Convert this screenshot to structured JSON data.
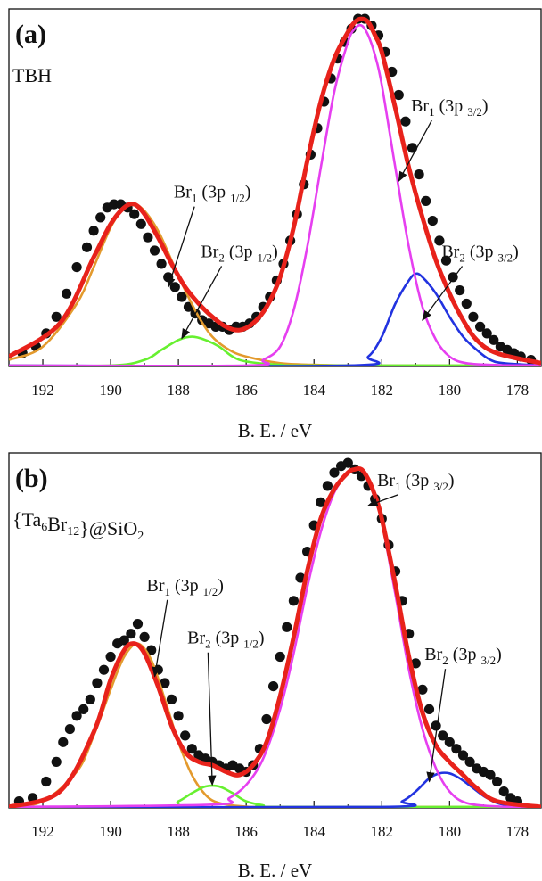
{
  "chart_data": [
    {
      "type": "line",
      "panel": "(a)",
      "sample": "TBH",
      "xlabel": "B. E. / eV",
      "xlim": [
        193,
        177.3
      ],
      "x_reversed": true,
      "ylim": [
        0,
        1.08
      ],
      "xticks": [
        192,
        190,
        188,
        186,
        184,
        182,
        180,
        178
      ],
      "series": [
        {
          "component": "fit",
          "color": "#e8221b",
          "x": [
            193,
            191.5,
            190.5,
            190,
            189.6,
            189.3,
            189,
            188.6,
            188.2,
            187.8,
            187.4,
            187,
            186.6,
            186.2,
            185.8,
            185.4,
            185,
            184.6,
            184.2,
            183.8,
            183.4,
            183,
            182.8,
            182.6,
            182.4,
            182.2,
            182,
            181.6,
            181.2,
            180.8,
            180.4,
            180,
            179.6,
            179.2,
            178.6,
            177.3
          ],
          "y": [
            0.03,
            0.13,
            0.33,
            0.43,
            0.48,
            0.49,
            0.46,
            0.39,
            0.31,
            0.24,
            0.19,
            0.15,
            0.12,
            0.11,
            0.13,
            0.18,
            0.27,
            0.42,
            0.62,
            0.8,
            0.93,
            1.01,
            1.04,
            1.05,
            1.04,
            1.0,
            0.95,
            0.78,
            0.6,
            0.45,
            0.32,
            0.22,
            0.14,
            0.08,
            0.04,
            0.01
          ]
        },
        {
          "component": "Br1 3p1/2",
          "color": "#e39a2d",
          "x": [
            193,
            192,
            191,
            190.5,
            190,
            189.6,
            189.3,
            189,
            188.6,
            188.2,
            187.8,
            187.4,
            187,
            186.5,
            186,
            185,
            184,
            183,
            182,
            180,
            177.3
          ],
          "y": [
            0.02,
            0.06,
            0.19,
            0.3,
            0.42,
            0.48,
            0.49,
            0.47,
            0.41,
            0.32,
            0.23,
            0.15,
            0.09,
            0.05,
            0.03,
            0.01,
            0.005,
            0.003,
            0.003,
            0.003,
            0.003
          ]
        },
        {
          "component": "Br2 3p1/2",
          "color": "#67f030",
          "x": [
            193,
            190,
            189,
            188.5,
            188,
            187.6,
            187.2,
            186.8,
            186.4,
            186,
            185,
            184,
            177.3
          ],
          "y": [
            0.003,
            0.003,
            0.02,
            0.05,
            0.08,
            0.09,
            0.08,
            0.06,
            0.03,
            0.015,
            0.005,
            0.003,
            0.003
          ]
        },
        {
          "component": "Br1 3p3/2",
          "color": "#e63ff0",
          "x": [
            193,
            186,
            185.5,
            185,
            184.6,
            184.2,
            183.8,
            183.4,
            183,
            182.8,
            182.6,
            182.4,
            182.2,
            182,
            181.6,
            181.2,
            180.8,
            180.4,
            180,
            179.5,
            178.5,
            177.3
          ],
          "y": [
            0.003,
            0.003,
            0.02,
            0.06,
            0.17,
            0.36,
            0.6,
            0.83,
            0.98,
            1.02,
            1.03,
            1.0,
            0.94,
            0.85,
            0.6,
            0.36,
            0.18,
            0.08,
            0.03,
            0.01,
            0.004,
            0.003
          ]
        },
        {
          "component": "Br2 3p3/2",
          "color": "#2233e0",
          "x": [
            193,
            183,
            182.4,
            182,
            181.6,
            181.2,
            181,
            180.8,
            180.4,
            180,
            179.6,
            179.2,
            178.8,
            178.4,
            177.3
          ],
          "y": [
            0.003,
            0.003,
            0.03,
            0.09,
            0.19,
            0.26,
            0.28,
            0.27,
            0.22,
            0.15,
            0.09,
            0.05,
            0.02,
            0.01,
            0.003
          ]
        }
      ],
      "points": {
        "x": [
          192.6,
          192.2,
          191.9,
          191.6,
          191.3,
          191.0,
          190.7,
          190.5,
          190.3,
          190.1,
          189.9,
          189.7,
          189.5,
          189.3,
          189.1,
          188.9,
          188.7,
          188.5,
          188.3,
          188.1,
          187.9,
          187.7,
          187.5,
          187.3,
          187.1,
          186.9,
          186.7,
          186.5,
          186.3,
          186.1,
          185.9,
          185.7,
          185.5,
          185.3,
          185.1,
          184.9,
          184.7,
          184.5,
          184.3,
          184.1,
          183.9,
          183.7,
          183.5,
          183.3,
          183.1,
          182.9,
          182.7,
          182.5,
          182.3,
          182.1,
          181.9,
          181.7,
          181.5,
          181.3,
          181.1,
          180.9,
          180.7,
          180.5,
          180.3,
          180.1,
          179.9,
          179.7,
          179.5,
          179.3,
          179.1,
          178.9,
          178.7,
          178.5,
          178.3,
          178.1,
          177.9,
          177.6
        ],
        "y": [
          0.04,
          0.06,
          0.1,
          0.15,
          0.22,
          0.3,
          0.36,
          0.41,
          0.45,
          0.48,
          0.49,
          0.49,
          0.48,
          0.46,
          0.43,
          0.39,
          0.35,
          0.31,
          0.27,
          0.24,
          0.21,
          0.18,
          0.16,
          0.14,
          0.13,
          0.12,
          0.12,
          0.11,
          0.12,
          0.12,
          0.13,
          0.15,
          0.18,
          0.21,
          0.26,
          0.31,
          0.38,
          0.46,
          0.55,
          0.64,
          0.72,
          0.8,
          0.87,
          0.93,
          0.98,
          1.02,
          1.05,
          1.05,
          1.03,
          1.0,
          0.95,
          0.89,
          0.82,
          0.74,
          0.66,
          0.58,
          0.5,
          0.44,
          0.38,
          0.32,
          0.27,
          0.23,
          0.19,
          0.15,
          0.12,
          0.1,
          0.08,
          0.06,
          0.05,
          0.04,
          0.03,
          0.02
        ]
      },
      "annotations": [
        {
          "base": "Br",
          "sub1": "1",
          "mid": " (3p ",
          "sub2": "1/2",
          "end": ")",
          "x": 187.0,
          "y": 0.51,
          "arrow_to": [
            188.3,
            0.24
          ]
        },
        {
          "base": "Br",
          "sub1": "2",
          "mid": " (3p ",
          "sub2": "1/2",
          "end": ")",
          "x": 186.2,
          "y": 0.33,
          "arrow_to": [
            187.9,
            0.085
          ]
        },
        {
          "base": "Br",
          "sub1": "1",
          "mid": " (3p ",
          "sub2": "3/2",
          "end": ")",
          "x": 180.0,
          "y": 0.77,
          "arrow_to": [
            181.5,
            0.56
          ]
        },
        {
          "base": "Br",
          "sub1": "2",
          "mid": " (3p ",
          "sub2": "3/2",
          "end": ")",
          "x": 179.1,
          "y": 0.33,
          "arrow_to": [
            180.8,
            0.14
          ]
        }
      ]
    },
    {
      "type": "line",
      "panel": "(b)",
      "sample": "{Ta6Br12}@SiO2",
      "xlabel": "B. E. / eV",
      "xlim": [
        193,
        177.3
      ],
      "x_reversed": true,
      "ylim": [
        0,
        1.08
      ],
      "xticks": [
        192,
        190,
        188,
        186,
        184,
        182,
        180,
        178
      ],
      "series": [
        {
          "component": "fit",
          "color": "#e8221b",
          "x": [
            193,
            191.5,
            190.5,
            190,
            189.6,
            189.3,
            189,
            188.6,
            188.2,
            187.8,
            187.4,
            187,
            186.6,
            186.2,
            185.8,
            185.4,
            185,
            184.6,
            184.2,
            183.8,
            183.4,
            183,
            182.8,
            182.6,
            182.4,
            182.2,
            182,
            181.6,
            181.2,
            180.8,
            180.4,
            180,
            179.6,
            179.2,
            178.6,
            177.3
          ],
          "y": [
            0.003,
            0.05,
            0.23,
            0.39,
            0.48,
            0.5,
            0.47,
            0.37,
            0.25,
            0.17,
            0.14,
            0.13,
            0.11,
            0.1,
            0.13,
            0.2,
            0.34,
            0.52,
            0.72,
            0.88,
            0.97,
            1.02,
            1.03,
            1.03,
            1.0,
            0.95,
            0.88,
            0.68,
            0.46,
            0.29,
            0.19,
            0.14,
            0.1,
            0.06,
            0.02,
            0.003
          ]
        },
        {
          "component": "Br1 3p1/2",
          "color": "#e39a2d",
          "x": [
            193,
            192,
            191,
            190.5,
            190,
            189.6,
            189.2,
            188.8,
            188.4,
            188,
            187.6,
            187.2,
            186.8,
            186,
            185,
            177.3
          ],
          "y": [
            0.003,
            0.02,
            0.11,
            0.22,
            0.36,
            0.46,
            0.5,
            0.45,
            0.33,
            0.2,
            0.1,
            0.04,
            0.015,
            0.004,
            0.003,
            0.003
          ]
        },
        {
          "component": "Br2 3p1/2",
          "color": "#67f030",
          "x": [
            193,
            188.5,
            188,
            187.6,
            187.2,
            186.8,
            186.4,
            186,
            185.5,
            185,
            177.3
          ],
          "y": [
            0.003,
            0.003,
            0.02,
            0.045,
            0.065,
            0.065,
            0.045,
            0.02,
            0.008,
            0.003,
            0.003
          ]
        },
        {
          "component": "Br1 3p3/2",
          "color": "#e63ff0",
          "x": [
            193,
            187,
            186.5,
            186,
            185.5,
            185,
            184.6,
            184.2,
            183.8,
            183.4,
            183,
            182.8,
            182.6,
            182.4,
            182.2,
            182,
            181.6,
            181.2,
            180.8,
            180.4,
            180,
            179.5,
            178.5,
            177.3
          ],
          "y": [
            0.003,
            0.01,
            0.03,
            0.07,
            0.15,
            0.3,
            0.47,
            0.67,
            0.84,
            0.96,
            1.02,
            1.03,
            1.03,
            1.0,
            0.95,
            0.87,
            0.65,
            0.42,
            0.24,
            0.12,
            0.05,
            0.015,
            0.004,
            0.003
          ]
        },
        {
          "component": "Br2 3p3/2",
          "color": "#2233e0",
          "x": [
            193,
            182,
            181.4,
            181,
            180.6,
            180.3,
            180,
            179.7,
            179.3,
            178.9,
            178.4,
            177.3
          ],
          "y": [
            0.003,
            0.003,
            0.02,
            0.05,
            0.09,
            0.105,
            0.105,
            0.09,
            0.06,
            0.03,
            0.01,
            0.003
          ]
        }
      ],
      "points": {
        "x": [
          192.7,
          192.3,
          191.9,
          191.6,
          191.4,
          191.2,
          191.0,
          190.8,
          190.6,
          190.4,
          190.2,
          190.0,
          189.8,
          189.6,
          189.4,
          189.2,
          189.0,
          188.8,
          188.6,
          188.4,
          188.2,
          188.0,
          187.8,
          187.6,
          187.4,
          187.2,
          187.0,
          186.8,
          186.6,
          186.4,
          186.2,
          186.0,
          185.8,
          185.6,
          185.4,
          185.2,
          185.0,
          184.8,
          184.6,
          184.4,
          184.2,
          184.0,
          183.8,
          183.6,
          183.4,
          183.2,
          183.0,
          182.8,
          182.6,
          182.4,
          182.2,
          182.0,
          181.8,
          181.6,
          181.4,
          181.2,
          181.0,
          180.8,
          180.6,
          180.4,
          180.2,
          180.0,
          179.8,
          179.6,
          179.4,
          179.2,
          179.0,
          178.8,
          178.6,
          178.4,
          178.2,
          178.0
        ],
        "y": [
          0.02,
          0.03,
          0.08,
          0.14,
          0.2,
          0.24,
          0.28,
          0.3,
          0.33,
          0.38,
          0.42,
          0.46,
          0.5,
          0.51,
          0.53,
          0.56,
          0.52,
          0.48,
          0.42,
          0.38,
          0.33,
          0.28,
          0.22,
          0.18,
          0.16,
          0.15,
          0.14,
          0.13,
          0.12,
          0.13,
          0.12,
          0.11,
          0.13,
          0.18,
          0.27,
          0.37,
          0.46,
          0.55,
          0.63,
          0.7,
          0.78,
          0.86,
          0.93,
          0.98,
          1.02,
          1.04,
          1.05,
          1.03,
          1.01,
          0.98,
          0.94,
          0.88,
          0.8,
          0.72,
          0.63,
          0.53,
          0.44,
          0.36,
          0.3,
          0.25,
          0.22,
          0.2,
          0.18,
          0.16,
          0.14,
          0.12,
          0.11,
          0.1,
          0.08,
          0.05,
          0.03,
          0.02
        ]
      },
      "annotations": [
        {
          "base": "Br",
          "sub1": "1",
          "mid": " (3p ",
          "sub2": "1/2",
          "end": ")",
          "x": 187.8,
          "y": 0.66,
          "arrow_to": [
            188.7,
            0.4
          ]
        },
        {
          "base": "Br",
          "sub1": "2",
          "mid": " (3p ",
          "sub2": "1/2",
          "end": ")",
          "x": 186.6,
          "y": 0.5,
          "arrow_to": [
            187.0,
            0.07
          ]
        },
        {
          "base": "Br",
          "sub1": "1",
          "mid": " (3p ",
          "sub2": "3/2",
          "end": ")",
          "x": 181.0,
          "y": 0.98,
          "arrow_to": [
            182.4,
            0.92
          ]
        },
        {
          "base": "Br",
          "sub1": "2",
          "mid": " (3p ",
          "sub2": "3/2",
          "end": ")",
          "x": 179.6,
          "y": 0.45,
          "arrow_to": [
            180.6,
            0.08
          ]
        }
      ]
    }
  ]
}
